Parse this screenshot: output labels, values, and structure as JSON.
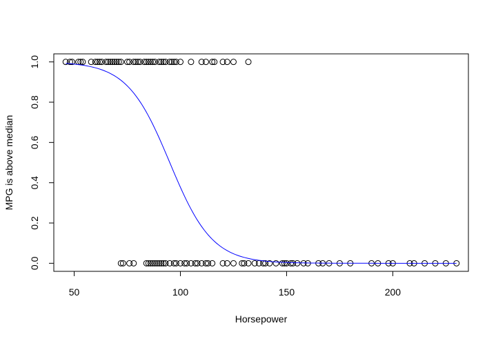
{
  "chart_data": {
    "type": "scatter",
    "title": "",
    "xlabel": "Horsepower",
    "ylabel": "MPG is above median",
    "xlim": [
      40.4,
      235.6
    ],
    "ylim": [
      -0.04,
      1.04
    ],
    "x_ticks": [
      50,
      100,
      150,
      200
    ],
    "y_ticks": [
      0.0,
      0.2,
      0.4,
      0.6,
      0.8,
      1.0
    ],
    "x_tick_labels": [
      "50",
      "100",
      "150",
      "200"
    ],
    "y_tick_labels": [
      "0.0",
      "0.2",
      "0.4",
      "0.6",
      "0.8",
      "1.0"
    ],
    "grid": false,
    "legend": "none",
    "curve_color": "#0000ff",
    "series": [
      {
        "type": "scatter",
        "y": 1,
        "x": [
          46,
          48,
          49,
          52,
          53,
          54,
          58,
          60,
          61,
          62,
          63,
          65,
          66,
          67,
          68,
          69,
          70,
          71,
          72,
          75,
          76,
          78,
          79,
          80,
          81,
          83,
          84,
          85,
          86,
          87,
          88,
          90,
          91,
          92,
          93,
          95,
          96,
          97,
          98,
          100,
          105,
          110,
          112,
          115,
          116,
          120,
          122,
          125,
          132
        ]
      },
      {
        "type": "scatter",
        "y": 0,
        "x": [
          72,
          73,
          76,
          78,
          84,
          85,
          86,
          87,
          88,
          89,
          90,
          91,
          92,
          93,
          95,
          97,
          98,
          100,
          102,
          103,
          105,
          107,
          108,
          110,
          112,
          113,
          115,
          120,
          122,
          125,
          129,
          130,
          132,
          135,
          137,
          139,
          140,
          142,
          145,
          148,
          149,
          150,
          152,
          153,
          155,
          158,
          160,
          165,
          167,
          170,
          175,
          180,
          190,
          193,
          198,
          200,
          208,
          210,
          215,
          220,
          225,
          230
        ]
      },
      {
        "type": "line",
        "model": "logistic",
        "intercept": 9.5,
        "slope": -0.1,
        "x_range": [
          46,
          230
        ]
      }
    ]
  }
}
